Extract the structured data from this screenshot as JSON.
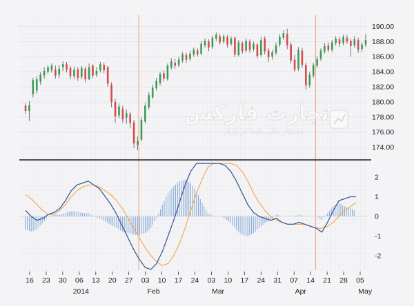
{
  "chart_data": [
    {
      "type": "candlestick",
      "panel": "price",
      "title": "",
      "ylabel": "",
      "ylim": [
        172.5,
        191.5
      ],
      "yticks": [
        "190.00",
        "188.00",
        "186.00",
        "184.00",
        "182.00",
        "180.00",
        "178.00",
        "176.00",
        "174.00"
      ],
      "colors": {
        "up": "#3a9b57",
        "down": "#d84a4a",
        "wick": "#555555"
      },
      "candles": [
        [
          179.5,
          178.8,
          179.8,
          178.4
        ],
        [
          178.8,
          179.6,
          180.1,
          177.5
        ],
        [
          181.0,
          182.9,
          183.2,
          180.6
        ],
        [
          181.5,
          183.0,
          183.4,
          181.1
        ],
        [
          182.7,
          183.6,
          183.9,
          182.3
        ],
        [
          183.5,
          184.1,
          184.6,
          183.1
        ],
        [
          184.0,
          184.6,
          184.9,
          183.7
        ],
        [
          184.2,
          184.8,
          185.1,
          183.9
        ],
        [
          184.3,
          183.5,
          184.8,
          183.1
        ],
        [
          183.6,
          184.4,
          184.9,
          183.2
        ],
        [
          184.6,
          185.0,
          185.4,
          184.1
        ],
        [
          185.0,
          184.3,
          185.3,
          183.9
        ],
        [
          184.5,
          183.4,
          184.8,
          183.0
        ],
        [
          183.4,
          184.3,
          184.7,
          183.0
        ],
        [
          184.3,
          183.2,
          184.6,
          182.8
        ],
        [
          183.3,
          184.5,
          184.8,
          183.0
        ],
        [
          184.4,
          183.0,
          184.7,
          182.6
        ],
        [
          183.0,
          184.6,
          185.1,
          182.9
        ],
        [
          184.8,
          183.5,
          185.0,
          183.2
        ],
        [
          183.6,
          184.1,
          184.6,
          183.3
        ],
        [
          184.2,
          185.0,
          185.3,
          183.9
        ],
        [
          184.9,
          184.2,
          185.2,
          183.8
        ],
        [
          184.6,
          182.4,
          184.8,
          182.0
        ],
        [
          182.3,
          180.0,
          182.6,
          179.3
        ],
        [
          180.0,
          178.1,
          180.4,
          177.2
        ],
        [
          178.2,
          179.4,
          179.8,
          177.8
        ],
        [
          179.1,
          177.7,
          179.5,
          177.2
        ],
        [
          177.9,
          178.5,
          179.0,
          177.1
        ],
        [
          178.4,
          177.2,
          178.7,
          176.5
        ],
        [
          177.3,
          174.5,
          177.6,
          173.9
        ],
        [
          174.3,
          174.8,
          175.4,
          173.6
        ],
        [
          175.0,
          177.6,
          178.0,
          174.8
        ],
        [
          177.4,
          179.5,
          179.9,
          177.1
        ],
        [
          179.3,
          180.9,
          181.3,
          179.0
        ],
        [
          180.6,
          181.9,
          182.3,
          180.4
        ],
        [
          181.8,
          182.8,
          183.2,
          181.5
        ],
        [
          182.5,
          183.7,
          184.0,
          182.2
        ],
        [
          183.8,
          183.1,
          184.2,
          182.7
        ],
        [
          183.0,
          184.8,
          185.1,
          182.8
        ],
        [
          184.6,
          185.4,
          185.8,
          184.3
        ],
        [
          185.2,
          184.8,
          185.7,
          184.4
        ],
        [
          184.9,
          185.6,
          186.0,
          184.6
        ],
        [
          185.5,
          186.3,
          186.6,
          185.2
        ],
        [
          186.2,
          185.6,
          186.5,
          185.2
        ],
        [
          185.7,
          186.4,
          186.8,
          185.4
        ],
        [
          186.3,
          186.9,
          187.2,
          186.0
        ],
        [
          186.8,
          186.3,
          187.1,
          186.0
        ],
        [
          186.4,
          187.7,
          188.1,
          186.2
        ],
        [
          187.5,
          188.1,
          188.4,
          187.2
        ],
        [
          188.0,
          187.2,
          188.3,
          186.7
        ],
        [
          187.3,
          188.5,
          188.8,
          187.0
        ],
        [
          188.4,
          188.9,
          189.2,
          188.1
        ],
        [
          188.7,
          187.9,
          189.0,
          187.6
        ],
        [
          188.0,
          188.7,
          189.0,
          187.7
        ],
        [
          188.6,
          187.6,
          188.9,
          187.2
        ],
        [
          187.7,
          188.4,
          188.7,
          187.4
        ],
        [
          188.5,
          186.3,
          188.7,
          185.9
        ],
        [
          186.2,
          187.9,
          188.2,
          186.0
        ],
        [
          187.8,
          186.7,
          188.0,
          186.4
        ],
        [
          186.8,
          188.1,
          188.4,
          186.5
        ],
        [
          188.0,
          186.9,
          188.3,
          186.5
        ],
        [
          187.0,
          187.7,
          188.0,
          186.7
        ],
        [
          187.6,
          186.1,
          187.8,
          185.8
        ],
        [
          186.2,
          188.2,
          188.6,
          186.0
        ],
        [
          188.4,
          186.7,
          188.7,
          186.3
        ],
        [
          186.8,
          185.9,
          187.1,
          185.3
        ],
        [
          186.0,
          186.6,
          186.9,
          185.6
        ],
        [
          186.5,
          187.5,
          187.9,
          186.2
        ],
        [
          187.6,
          188.6,
          189.0,
          187.3
        ],
        [
          188.5,
          189.1,
          189.5,
          188.2
        ],
        [
          189.0,
          187.5,
          189.7,
          187.0
        ],
        [
          187.6,
          185.5,
          187.9,
          185.1
        ],
        [
          185.6,
          184.3,
          186.2,
          184.0
        ],
        [
          184.4,
          186.9,
          187.3,
          184.1
        ],
        [
          186.8,
          184.9,
          187.2,
          184.5
        ],
        [
          184.9,
          182.2,
          185.2,
          181.6
        ],
        [
          182.2,
          183.6,
          184.0,
          181.9
        ],
        [
          183.5,
          184.9,
          185.2,
          183.2
        ],
        [
          184.8,
          185.7,
          186.1,
          184.5
        ],
        [
          185.7,
          186.8,
          187.1,
          185.4
        ],
        [
          186.7,
          187.4,
          187.8,
          186.4
        ],
        [
          187.5,
          186.9,
          187.9,
          186.6
        ],
        [
          186.9,
          187.9,
          188.2,
          186.6
        ],
        [
          187.8,
          188.4,
          188.7,
          187.5
        ],
        [
          188.3,
          187.7,
          188.6,
          187.3
        ],
        [
          187.8,
          188.6,
          188.9,
          187.5
        ],
        [
          188.5,
          188.0,
          188.9,
          187.7
        ],
        [
          188.1,
          187.4,
          188.4,
          186.0
        ],
        [
          187.5,
          188.3,
          188.7,
          187.2
        ],
        [
          188.2,
          186.9,
          188.5,
          186.5
        ],
        [
          187.0,
          187.6,
          187.9,
          186.6
        ],
        [
          187.6,
          188.2,
          189.0,
          187.3
        ]
      ]
    },
    {
      "type": "line",
      "panel": "macd",
      "title": "",
      "ylabel": "",
      "ylim": [
        -2.8,
        2.8
      ],
      "yticks": [
        "2",
        "1",
        "0",
        "-1",
        "-2"
      ],
      "xticks": [
        "16",
        "23",
        "30",
        "06",
        "13",
        "20",
        "27",
        "03",
        "10",
        "17",
        "24",
        "03",
        "10",
        "17",
        "24",
        "31",
        "07",
        "14",
        "21",
        "28",
        "05"
      ],
      "months": [
        "2014",
        "Feb",
        "Mar",
        "Apr",
        "May"
      ],
      "vlines": [
        6.6,
        17.3,
        24.9,
        35.6,
        42.9
      ],
      "colors": {
        "macd": "#3b5b98",
        "signal": "#f2a544",
        "histogram": "#7fa6d6",
        "vline": "#e8936b"
      },
      "series": [
        {
          "x": [
            0,
            1,
            2,
            3,
            4,
            5,
            6,
            7,
            8,
            9,
            10,
            11,
            12,
            13,
            14,
            15,
            16,
            17,
            18,
            19,
            20,
            21,
            22,
            23,
            24,
            25,
            26,
            27,
            28,
            29,
            30,
            31,
            32,
            33,
            34,
            35,
            36,
            37,
            38,
            39,
            40,
            41,
            42,
            43,
            44,
            45,
            46,
            47,
            48,
            49,
            50,
            51,
            52,
            53,
            54,
            55,
            56,
            57,
            58
          ],
          "values": [
            0.3,
            0.0,
            -0.2,
            -0.1,
            0.1,
            0.2,
            0.4,
            0.8,
            1.3,
            1.6,
            1.7,
            1.8,
            1.6,
            1.4,
            1.0,
            0.6,
            0.1,
            -0.5,
            -1.1,
            -1.7,
            -2.2,
            -2.6,
            -2.7,
            -2.4,
            -1.8,
            -1.0,
            -0.2,
            0.7,
            1.6,
            2.3,
            2.7,
            2.7,
            2.7,
            2.7,
            2.7,
            2.6,
            2.3,
            1.8,
            1.2,
            0.6,
            0.2,
            0.0,
            -0.1,
            -0.2,
            -0.1,
            -0.3,
            -0.4,
            -0.4,
            -0.3,
            -0.4,
            -0.5,
            -0.6,
            -0.8,
            -0.3,
            0.3,
            0.8,
            0.9,
            1.0,
            1.0
          ]
        },
        {
          "x": [
            0,
            1,
            2,
            3,
            4,
            5,
            6,
            7,
            8,
            9,
            10,
            11,
            12,
            13,
            14,
            15,
            16,
            17,
            18,
            19,
            20,
            21,
            22,
            23,
            24,
            25,
            26,
            27,
            28,
            29,
            30,
            31,
            32,
            33,
            34,
            35,
            36,
            37,
            38,
            39,
            40,
            41,
            42,
            43,
            44,
            45,
            46,
            47,
            48,
            49,
            50,
            51,
            52,
            53,
            54,
            55,
            56,
            57,
            58
          ],
          "values": [
            1.1,
            0.9,
            0.6,
            0.3,
            0.1,
            0.1,
            0.3,
            0.6,
            1.0,
            1.3,
            1.5,
            1.6,
            1.6,
            1.5,
            1.3,
            1.1,
            0.8,
            0.4,
            -0.1,
            -0.6,
            -1.1,
            -1.6,
            -2.0,
            -2.3,
            -2.5,
            -2.4,
            -2.0,
            -1.4,
            -0.6,
            0.3,
            1.2,
            1.9,
            2.5,
            2.7,
            2.7,
            2.7,
            2.7,
            2.6,
            2.3,
            1.8,
            1.2,
            0.7,
            0.3,
            0.0,
            -0.2,
            -0.3,
            -0.4,
            -0.4,
            -0.4,
            -0.4,
            -0.5,
            -0.6,
            -0.6,
            -0.5,
            -0.3,
            0.0,
            0.3,
            0.5,
            0.7
          ]
        }
      ]
    }
  ],
  "watermark": {
    "main": "تجارت فارکس",
    "sub": "دستیار مالی شما در بازار"
  }
}
